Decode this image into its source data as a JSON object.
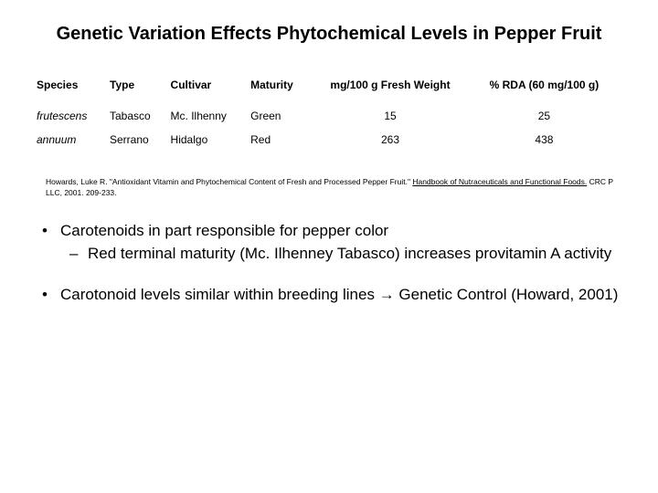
{
  "title": "Genetic Variation Effects Phytochemical Levels in Pepper Fruit",
  "table": {
    "columns": [
      {
        "label": "Species",
        "align": "left"
      },
      {
        "label": "Type",
        "align": "left"
      },
      {
        "label": "Cultivar",
        "align": "left"
      },
      {
        "label": "Maturity",
        "align": "left"
      },
      {
        "label": "mg/100 g Fresh Weight",
        "align": "center"
      },
      {
        "label": "% RDA (60 mg/100 g)",
        "align": "center"
      }
    ],
    "rows": [
      {
        "species": "frutescens",
        "type": "Tabasco",
        "cultivar": "Mc. Ilhenny",
        "maturity": "Green",
        "mg": "15",
        "rda": "25"
      },
      {
        "species": "annuum",
        "type": "Serrano",
        "cultivar": "Hidalgo",
        "maturity": "Red",
        "mg": "263",
        "rda": "438"
      }
    ]
  },
  "citation": {
    "prefix": "Howards, Luke R. \"Antioxidant Vitamin and Phytochemical Content of Fresh and Processed Pepper Fruit.\" ",
    "underlined": "Handbook of Nutraceuticals and Functional Foods.",
    "suffix": " CRC P LLC, 2001. 209-233."
  },
  "bullets": [
    {
      "text": "Carotenoids in part responsible for pepper color",
      "sub": [
        "Red terminal maturity (Mc. Ilhenney Tabasco) increases provitamin A activity"
      ]
    },
    {
      "text": "Carotonoid levels similar within breeding lines → Genetic Control (Howard, 2001)",
      "sub": []
    }
  ],
  "styling": {
    "background_color": "#ffffff",
    "text_color": "#000000",
    "title_fontsize": 20,
    "table_fontsize": 12,
    "citation_fontsize": 8.5,
    "bullet_fontsize": 17,
    "font_family": "Arial"
  }
}
